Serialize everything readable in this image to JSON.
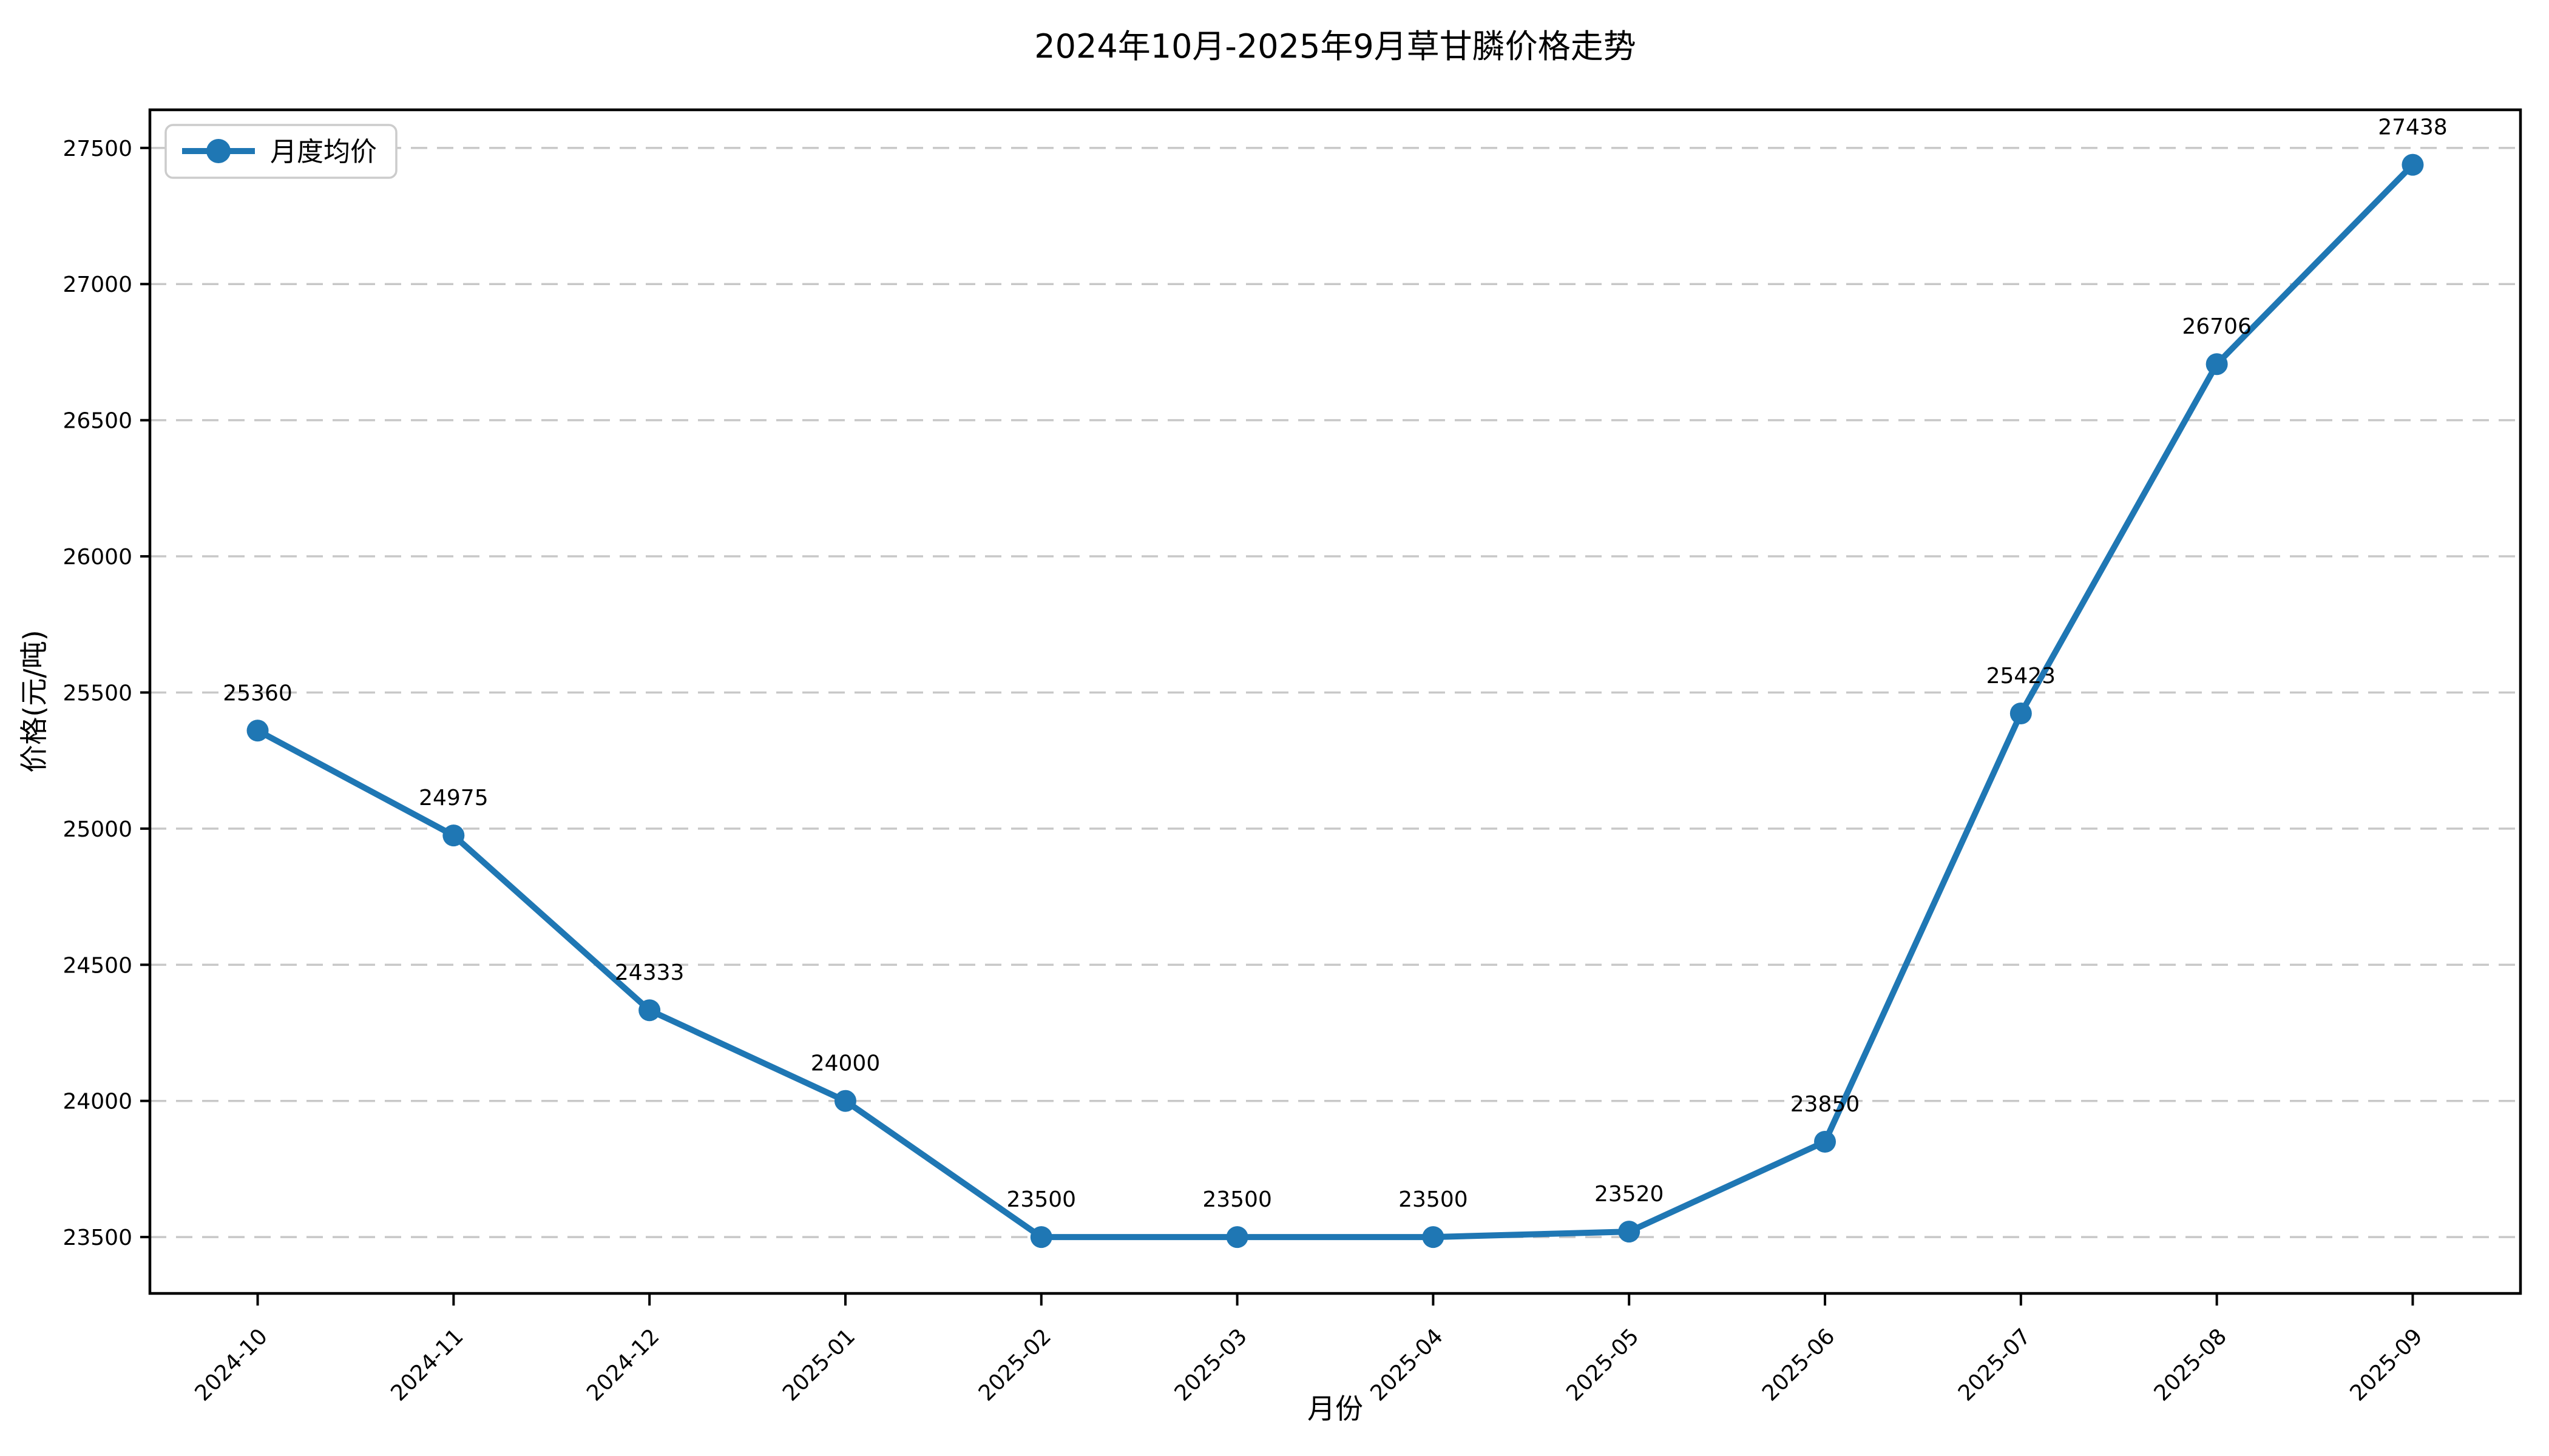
{
  "title": "2024年10月-2025年9月草甘膦价格走势",
  "chart_data": {
    "type": "line",
    "title": "2024年10月-2025年9月草甘膦价格走势",
    "xlabel": "月份",
    "ylabel": "价格(元/吨)",
    "legend": [
      {
        "label": "月度均价",
        "position": "upper left"
      }
    ],
    "categories": [
      "2024-10",
      "2024-11",
      "2024-12",
      "2025-01",
      "2025-02",
      "2025-03",
      "2025-04",
      "2025-05",
      "2025-06",
      "2025-07",
      "2025-08",
      "2025-09"
    ],
    "series": [
      {
        "name": "月度均价",
        "values": [
          25360,
          24975,
          24333,
          24000,
          23500,
          23500,
          23500,
          23520,
          23850,
          25423,
          26706,
          27438
        ]
      }
    ],
    "point_labels": [
      "25360",
      "24975",
      "24333",
      "24000",
      "23500",
      "23500",
      "23500",
      "23520",
      "23850",
      "25423",
      "26706",
      "27438"
    ],
    "yticks": [
      23500,
      24000,
      24500,
      25000,
      25500,
      26000,
      26500,
      27000,
      27500
    ],
    "ylim": [
      23293,
      27640
    ],
    "grid": "horizontal-dashed",
    "marker": "circle",
    "colors": {
      "line": "#1f77b4",
      "marker": "#1f77b4",
      "grid": "#c8c8c8",
      "axis": "#000000",
      "text": "#000000",
      "background": "#ffffff",
      "legend_border": "#cccccc",
      "legend_background": "#ffffff"
    }
  }
}
